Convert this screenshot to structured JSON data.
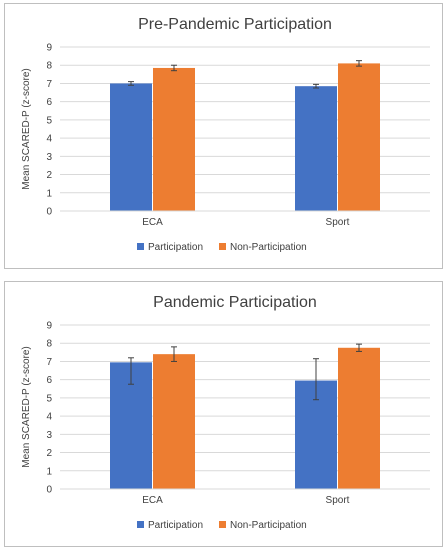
{
  "chart_data": [
    {
      "type": "bar",
      "title": "Pre-Pandemic Participation",
      "ylabel": "Mean SCARED-P (z-score)",
      "xlabel": "",
      "ylim": [
        0,
        9
      ],
      "yticks": [
        "0",
        "1",
        "2",
        "3",
        "4",
        "5",
        "6",
        "7",
        "8",
        "9"
      ],
      "grid": true,
      "legend": "bottom",
      "categories": [
        "ECA",
        "Sport"
      ],
      "series": [
        {
          "name": "Participation",
          "color": "#4472C4",
          "values": [
            7.0,
            6.85
          ],
          "errors": [
            0.1,
            0.1
          ]
        },
        {
          "name": "Non-Participation",
          "color": "#ED7D31",
          "values": [
            7.85,
            8.1
          ],
          "errors": [
            0.15,
            0.15
          ]
        }
      ]
    },
    {
      "type": "bar",
      "title": "Pandemic Participation",
      "ylabel": "Mean SCARED-P (z-score)",
      "xlabel": "",
      "ylim": [
        0,
        9
      ],
      "yticks": [
        "0",
        "1",
        "2",
        "3",
        "4",
        "5",
        "6",
        "7",
        "8",
        "9"
      ],
      "grid": true,
      "legend": "bottom",
      "categories": [
        "ECA",
        "Sport"
      ],
      "series": [
        {
          "name": "Participation",
          "color": "#4472C4",
          "values": [
            6.95,
            5.95
          ],
          "errors": [
            0.25,
            0.2
          ],
          "errors_low": [
            1.2,
            1.05
          ],
          "errors_high": [
            0.25,
            1.2
          ]
        },
        {
          "name": "Non-Participation",
          "color": "#ED7D31",
          "values": [
            7.4,
            7.75
          ],
          "errors": [
            0.4,
            0.2
          ]
        }
      ]
    }
  ]
}
